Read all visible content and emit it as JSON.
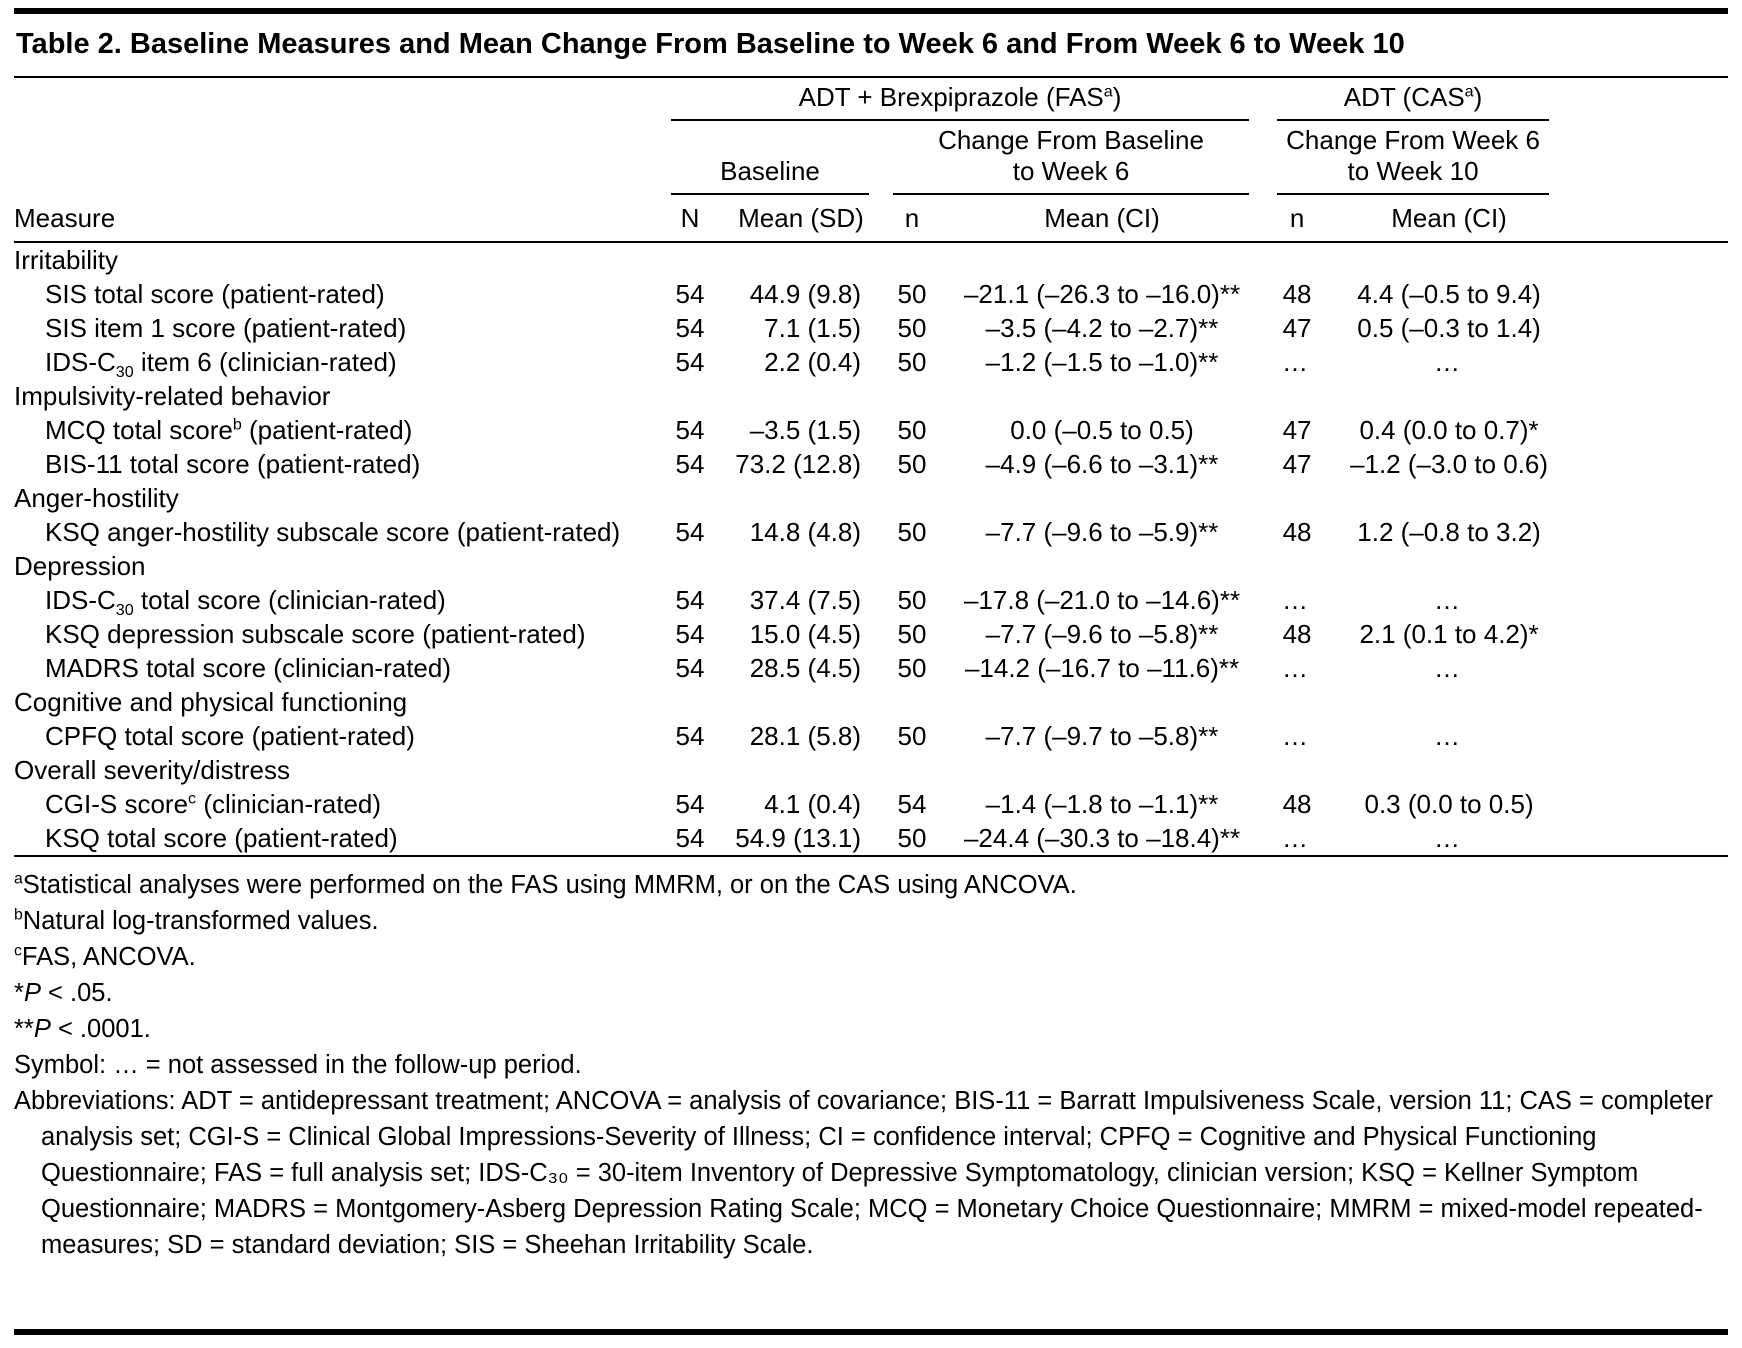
{
  "colors": {
    "text": "#000000",
    "background": "#ffffff",
    "rules": "#000000"
  },
  "title": "Table 2. Baseline Measures and Mean Change From Baseline to Week 6 and From Week 6 to Week 10",
  "header": {
    "group_fas": {
      "pre": "ADT + Brexpiprazole (FAS",
      "sup": "a",
      "post": ")"
    },
    "group_cas": {
      "pre": "ADT (CAS",
      "sup": "a",
      "post": ")"
    },
    "baseline_label": "Baseline",
    "change_fas": {
      "line1": "Change From Baseline",
      "line2": "to Week 6"
    },
    "change_cas": {
      "line1": "Change From Week 6",
      "line2": "to Week 10"
    },
    "columns": {
      "measure": "Measure",
      "N": "N",
      "mean_sd": "Mean (SD)",
      "n_fas": "n",
      "mean_ci_fas": "Mean (CI)",
      "n_cas": "n",
      "mean_ci_cas": "Mean (CI)"
    }
  },
  "table": {
    "not_assessed_symbol": "…",
    "rows": [
      {
        "type": "section",
        "label": [
          {
            "t": "Irritability"
          }
        ]
      },
      {
        "type": "data",
        "label": [
          {
            "t": "SIS total score (patient-rated)"
          }
        ],
        "cells": [
          "54",
          "44.9 (9.8)",
          "50",
          "–21.1 (–26.3 to –16.0)**",
          "48",
          "4.4 (–0.5 to 9.4)"
        ]
      },
      {
        "type": "data",
        "label": [
          {
            "t": "SIS item 1 score (patient-rated)"
          }
        ],
        "cells": [
          "54",
          "7.1 (1.5)",
          "50",
          "–3.5 (–4.2 to –2.7)**",
          "47",
          "0.5 (–0.3 to 1.4)"
        ]
      },
      {
        "type": "data",
        "label": [
          {
            "t": "IDS-C"
          },
          {
            "sub": "30"
          },
          {
            "t": " item 6 (clinician-rated)"
          }
        ],
        "cells": [
          "54",
          "2.2 (0.4)",
          "50",
          "–1.2 (–1.5 to –1.0)**",
          "…",
          "…"
        ]
      },
      {
        "type": "section",
        "label": [
          {
            "t": "Impulsivity-related behavior"
          }
        ]
      },
      {
        "type": "data",
        "label": [
          {
            "t": "MCQ total score"
          },
          {
            "sup": "b"
          },
          {
            "t": " (patient-rated)"
          }
        ],
        "cells": [
          "54",
          "–3.5 (1.5)",
          "50",
          "0.0 (–0.5 to 0.5)",
          "47",
          "0.4 (0.0 to 0.7)*"
        ]
      },
      {
        "type": "data",
        "label": [
          {
            "t": "BIS-11 total score (patient-rated)"
          }
        ],
        "cells": [
          "54",
          "73.2 (12.8)",
          "50",
          "–4.9 (–6.6 to –3.1)**",
          "47",
          "–1.2 (–3.0 to 0.6)"
        ]
      },
      {
        "type": "section",
        "label": [
          {
            "t": "Anger-hostility"
          }
        ]
      },
      {
        "type": "data",
        "label": [
          {
            "t": "KSQ anger-hostility subscale score (patient-rated)"
          }
        ],
        "cells": [
          "54",
          "14.8 (4.8)",
          "50",
          "–7.7 (–9.6 to –5.9)**",
          "48",
          "1.2 (–0.8 to 3.2)"
        ]
      },
      {
        "type": "section",
        "label": [
          {
            "t": "Depression"
          }
        ]
      },
      {
        "type": "data",
        "label": [
          {
            "t": "IDS-C"
          },
          {
            "sub": "30"
          },
          {
            "t": " total score (clinician-rated)"
          }
        ],
        "cells": [
          "54",
          "37.4 (7.5)",
          "50",
          "–17.8 (–21.0 to –14.6)**",
          "…",
          "…"
        ]
      },
      {
        "type": "data",
        "label": [
          {
            "t": "KSQ depression subscale score (patient-rated)"
          }
        ],
        "cells": [
          "54",
          "15.0 (4.5)",
          "50",
          "–7.7 (–9.6 to –5.8)**",
          "48",
          "2.1 (0.1 to 4.2)*"
        ]
      },
      {
        "type": "data",
        "label": [
          {
            "t": "MADRS total score (clinician-rated)"
          }
        ],
        "cells": [
          "54",
          "28.5 (4.5)",
          "50",
          "–14.2 (–16.7 to –11.6)**",
          "…",
          "…"
        ]
      },
      {
        "type": "section",
        "label": [
          {
            "t": "Cognitive and physical functioning"
          }
        ]
      },
      {
        "type": "data",
        "label": [
          {
            "t": "CPFQ total score (patient-rated)"
          }
        ],
        "cells": [
          "54",
          "28.1 (5.8)",
          "50",
          "–7.7 (–9.7 to –5.8)**",
          "…",
          "…"
        ]
      },
      {
        "type": "section",
        "label": [
          {
            "t": "Overall severity/distress"
          }
        ]
      },
      {
        "type": "data",
        "label": [
          {
            "t": "CGI-S score"
          },
          {
            "sup": "c"
          },
          {
            "t": " (clinician-rated)"
          }
        ],
        "cells": [
          "54",
          "4.1 (0.4)",
          "54",
          "–1.4 (–1.8 to –1.1)**",
          "48",
          "0.3 (0.0 to 0.5)"
        ]
      },
      {
        "type": "data",
        "label": [
          {
            "t": "KSQ total score (patient-rated)"
          }
        ],
        "cells": [
          "54",
          "54.9 (13.1)",
          "50",
          "–24.4 (–30.3 to –18.4)**",
          "…",
          "…"
        ]
      }
    ]
  },
  "footnotes": {
    "a": {
      "sup": "a",
      "text": "Statistical analyses were performed on the FAS using MMRM, or on the CAS using ANCOVA."
    },
    "b": {
      "sup": "b",
      "text": "Natural log-transformed values."
    },
    "c": {
      "sup": "c",
      "text": "FAS, ANCOVA."
    },
    "p05": {
      "marker": "*",
      "italic": "P",
      "text": " < .05."
    },
    "p0001": {
      "marker": "**",
      "italic": "P",
      "text": " < .0001."
    },
    "symbol": "Symbol: … = not assessed in the follow-up period.",
    "abbreviations": "Abbreviations: ADT = antidepressant treatment; ANCOVA = analysis of covariance; BIS-11 = Barratt Impulsiveness Scale, version 11; CAS = completer analysis set; CGI-S = Clinical Global Impressions-Severity of Illness; CI = confidence interval; CPFQ = Cognitive and Physical Functioning Questionnaire; FAS = full analysis set; IDS-C₃₀ = 30-item Inventory of Depressive Symptomatology, clinician version; KSQ = Kellner Symptom Questionnaire; MADRS = Montgomery-Asberg Depression Rating Scale; MCQ = Monetary Choice Questionnaire; MMRM = mixed-model repeated-measures; SD = standard deviation; SIS = Sheehan Irritability Scale."
  }
}
